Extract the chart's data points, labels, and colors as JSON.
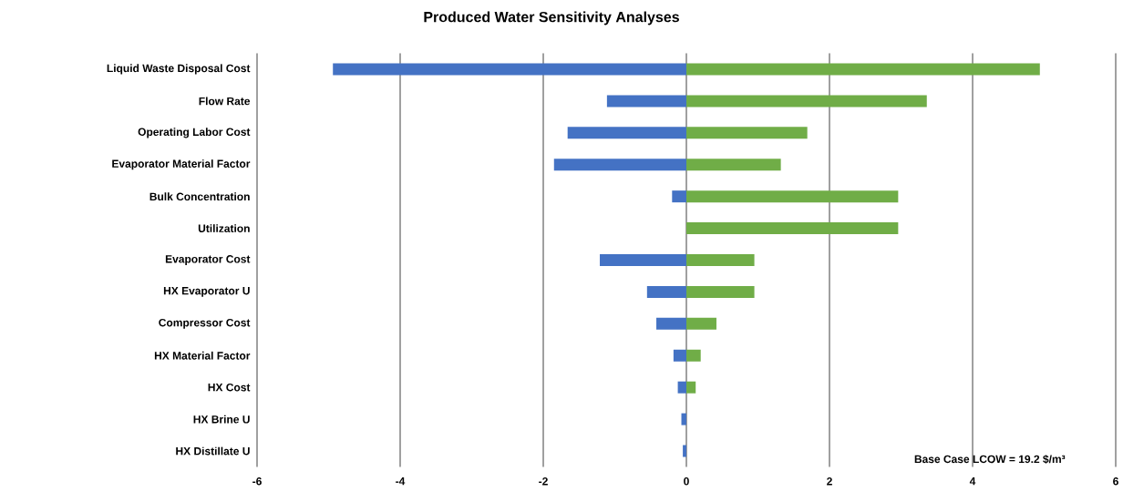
{
  "chart_data": {
    "type": "bar",
    "orientation": "horizontal",
    "title": "Produced Water Sensitivity Analyses",
    "categories": [
      "Liquid Waste Disposal Cost",
      "Flow Rate",
      "Operating Labor Cost",
      "Evaporator Material Factor",
      "Bulk Concentration",
      "Utilization",
      "Evaporator Cost",
      "HX Evaporator U",
      "Compressor Cost",
      "HX Material Factor",
      "HX Cost",
      "HX Brine U",
      "HX Distillate U"
    ],
    "series": [
      {
        "color": "#4472c4",
        "values": [
          -4.94,
          -1.11,
          -1.66,
          -1.85,
          -0.2,
          0,
          -1.21,
          -0.55,
          -0.42,
          -0.18,
          -0.12,
          -0.07,
          -0.05
        ]
      },
      {
        "color": "#70ad47",
        "values": [
          4.94,
          3.36,
          1.69,
          1.32,
          2.96,
          2.96,
          0.95,
          0.95,
          0.42,
          0.2,
          0.13,
          0,
          0
        ]
      }
    ],
    "xlim": [
      -6,
      6
    ],
    "xticks": [
      -6,
      -4,
      -2,
      0,
      2,
      4,
      6
    ],
    "grid": "x",
    "stacked": true,
    "annotations": [
      "Base Case LCOW = 19.2 $/m³"
    ]
  }
}
